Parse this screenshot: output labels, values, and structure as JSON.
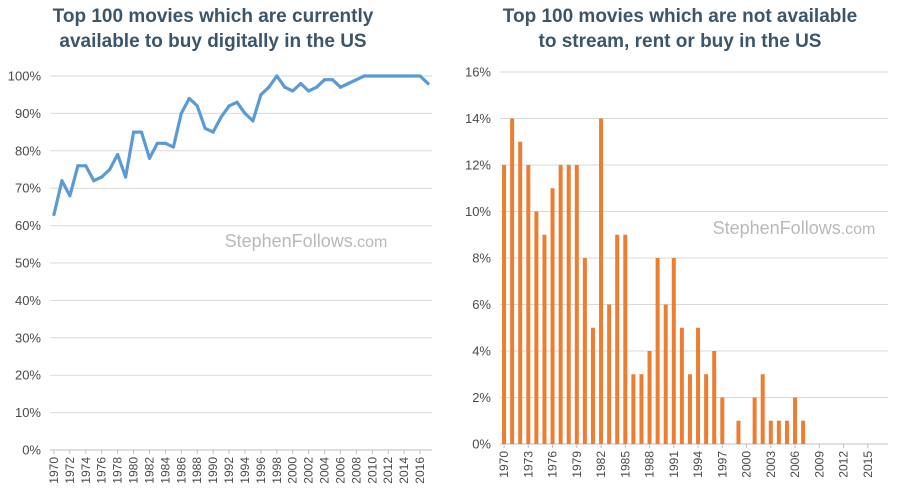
{
  "watermark": {
    "brand": "StephenFollows",
    "domain": ".com"
  },
  "chart_data": [
    {
      "type": "line",
      "title_line1": "Top 100 movies which are currently",
      "title_line2": "available to buy digitally in the US",
      "title": "Top 100 movies which are currently available to buy digitally in the US",
      "xlabel": "",
      "ylabel": "",
      "x": [
        1970,
        1971,
        1972,
        1973,
        1974,
        1975,
        1976,
        1977,
        1978,
        1979,
        1980,
        1981,
        1982,
        1983,
        1984,
        1985,
        1986,
        1987,
        1988,
        1989,
        1990,
        1991,
        1992,
        1993,
        1994,
        1995,
        1996,
        1997,
        1998,
        1999,
        2000,
        2001,
        2002,
        2003,
        2004,
        2005,
        2006,
        2007,
        2008,
        2009,
        2010,
        2011,
        2012,
        2013,
        2014,
        2015,
        2016,
        2017
      ],
      "values": [
        63,
        72,
        68,
        76,
        76,
        72,
        73,
        75,
        79,
        73,
        85,
        85,
        78,
        82,
        82,
        81,
        90,
        94,
        92,
        86,
        85,
        89,
        92,
        93,
        90,
        88,
        95,
        97,
        100,
        97,
        96,
        98,
        96,
        97,
        99,
        99,
        97,
        98,
        99,
        100,
        100,
        100,
        100,
        100,
        100,
        100,
        100,
        98
      ],
      "y_unit": "%",
      "ylim": [
        0,
        100
      ],
      "yticks": [
        "0%",
        "10%",
        "20%",
        "30%",
        "40%",
        "50%",
        "60%",
        "70%",
        "80%",
        "90%",
        "100%"
      ],
      "xtick_labels": [
        "1970",
        "1972",
        "1974",
        "1976",
        "1978",
        "1980",
        "1982",
        "1984",
        "1986",
        "1988",
        "1990",
        "1992",
        "1994",
        "1996",
        "1998",
        "2000",
        "2002",
        "2004",
        "2006",
        "2008",
        "2010",
        "2012",
        "2014",
        "2016"
      ],
      "grid": true,
      "color": "#5b9bd5"
    },
    {
      "type": "bar",
      "title_line1": "Top 100 movies which are not available",
      "title_line2": "to stream, rent or buy in the US",
      "title": "Top 100 movies which are not available to stream, rent or buy in the US",
      "xlabel": "",
      "ylabel": "",
      "x": [
        1970,
        1971,
        1972,
        1973,
        1974,
        1975,
        1976,
        1977,
        1978,
        1979,
        1980,
        1981,
        1982,
        1983,
        1984,
        1985,
        1986,
        1987,
        1988,
        1989,
        1990,
        1991,
        1992,
        1993,
        1994,
        1995,
        1996,
        1997,
        1998,
        1999,
        2000,
        2001,
        2002,
        2003,
        2004,
        2005,
        2006,
        2007,
        2008,
        2009,
        2010,
        2011,
        2012,
        2013,
        2014,
        2015,
        2016,
        2017
      ],
      "values": [
        12,
        14,
        13,
        12,
        10,
        9,
        11,
        12,
        12,
        12,
        8,
        5,
        14,
        6,
        9,
        9,
        3,
        3,
        4,
        8,
        6,
        8,
        5,
        3,
        5,
        3,
        4,
        2,
        0,
        1,
        0,
        2,
        3,
        1,
        1,
        1,
        2,
        1,
        0,
        0,
        0,
        0,
        0,
        0,
        0,
        0,
        0,
        0
      ],
      "y_unit": "%",
      "ylim": [
        0,
        16
      ],
      "yticks": [
        "0%",
        "2%",
        "4%",
        "6%",
        "8%",
        "10%",
        "12%",
        "14%",
        "16%"
      ],
      "xtick_labels": [
        "1970",
        "1973",
        "1976",
        "1979",
        "1982",
        "1985",
        "1988",
        "1991",
        "1994",
        "1997",
        "2000",
        "2003",
        "2006",
        "2009",
        "2012",
        "2015"
      ],
      "grid": true,
      "color": "#ed7d31"
    }
  ]
}
